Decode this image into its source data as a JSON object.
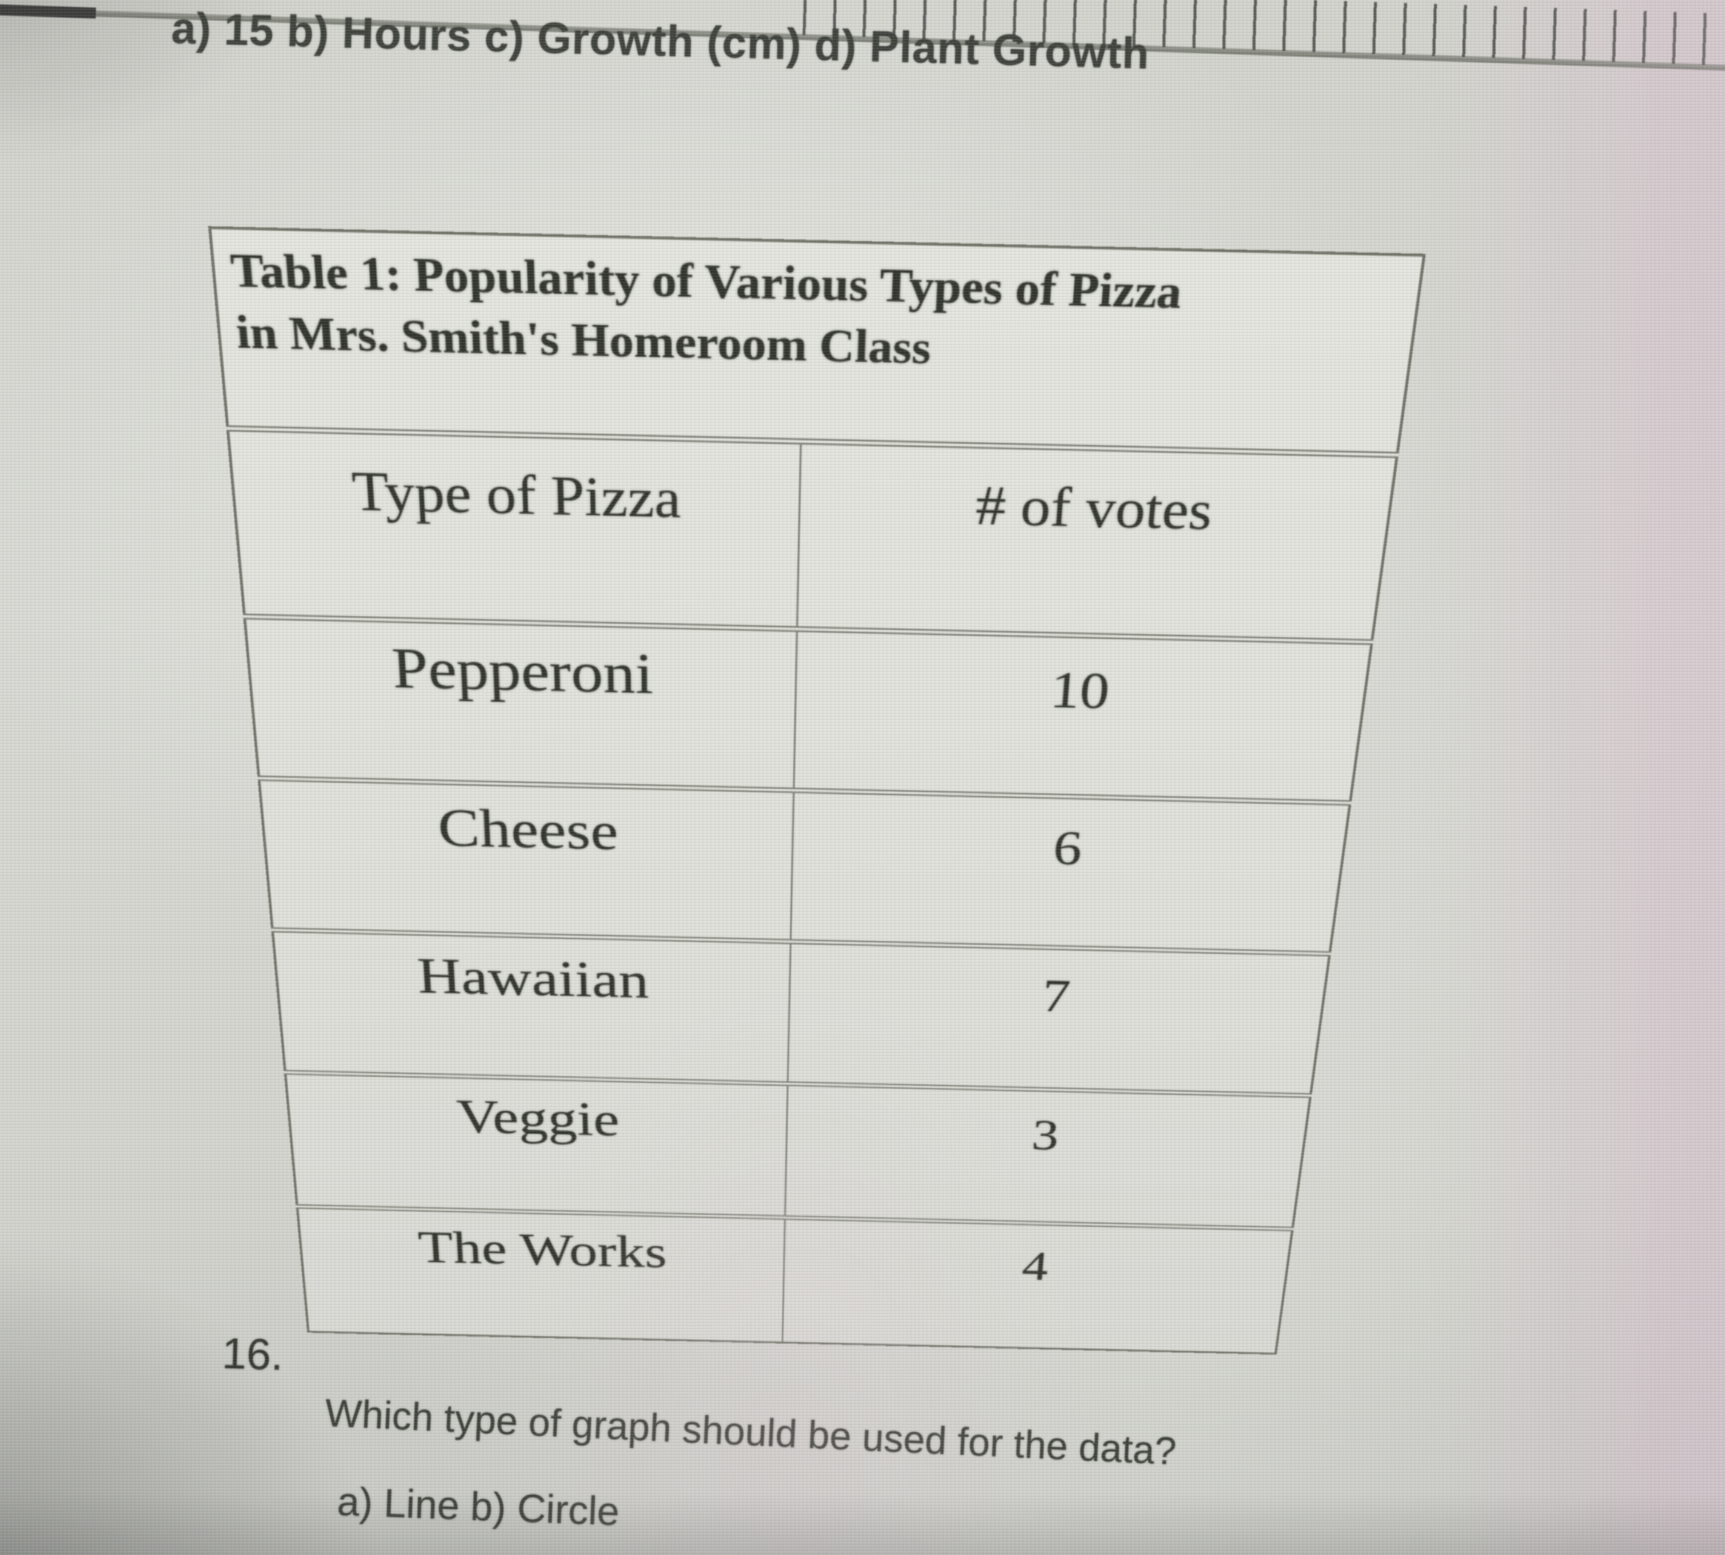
{
  "photo": {
    "top_answer_line": "a) 15 b) Hours c) Growth (cm) d) Plant Growth",
    "question_number": "16.",
    "question_text": "Which type of graph should be used for the data?",
    "answer_options_line": "a) Line b) Circle"
  },
  "table": {
    "title_line1": "Table 1: Popularity of Various Types of Pizza",
    "title_line2": "in Mrs. Smith's Homeroom Class",
    "columns": [
      "Type of Pizza",
      "# of votes"
    ],
    "rows": [
      [
        "Pepperoni",
        "10"
      ],
      [
        "Cheese",
        "6"
      ],
      [
        "Hawaiian",
        "7"
      ],
      [
        "Veggie",
        "3"
      ],
      [
        "The Works",
        "4"
      ]
    ]
  },
  "colors": {
    "paper": "#d6d7d1",
    "ink": "#32352d",
    "table_border": "#6f7267"
  }
}
